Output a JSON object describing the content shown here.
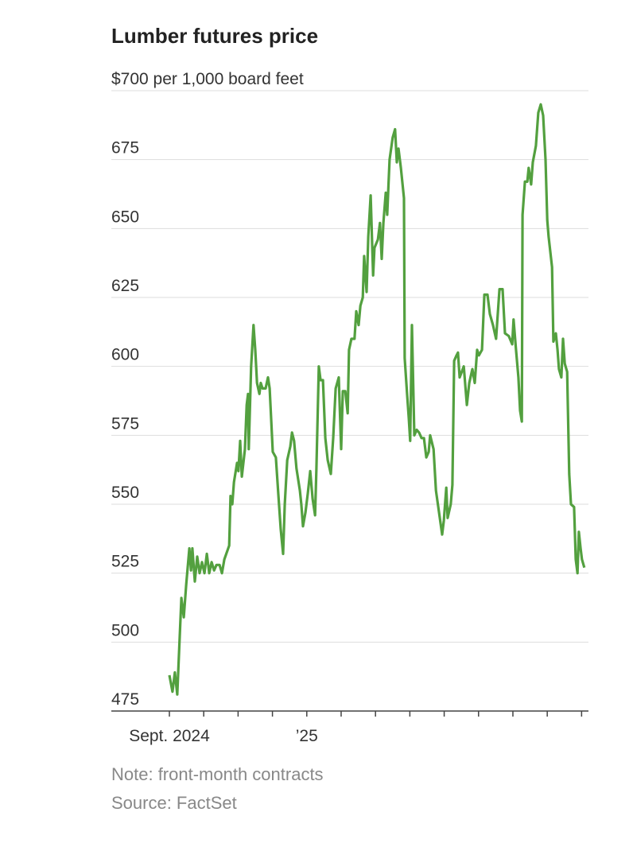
{
  "chart_data": {
    "type": "line",
    "title": "Lumber futures price",
    "note": "Note: front-month contracts",
    "source": "Source: FactSet",
    "xlim": [
      -1.69,
      12.2
    ],
    "ylim": [
      475,
      700
    ],
    "yticks": [
      475,
      500,
      525,
      550,
      575,
      600,
      625,
      650,
      675,
      {
        "value": 700,
        "label": "$700 per 1,000 board feet"
      }
    ],
    "xticks": [
      {
        "value": 0,
        "label": "Sept. 2024"
      },
      {
        "value": 1,
        "label": null
      },
      {
        "value": 2,
        "label": null
      },
      {
        "value": 3,
        "label": null
      },
      {
        "value": 4,
        "label": "’25"
      },
      {
        "value": 5,
        "label": null
      },
      {
        "value": 6,
        "label": null
      },
      {
        "value": 7,
        "label": null
      },
      {
        "value": 8,
        "label": null
      },
      {
        "value": 9,
        "label": null
      },
      {
        "value": 10,
        "label": null
      },
      {
        "value": 11,
        "label": null
      },
      {
        "value": 12,
        "label": null
      }
    ],
    "grid": true,
    "x": [
      0,
      0.09,
      0.16,
      0.23,
      0.3,
      0.35,
      0.42,
      0.49,
      0.58,
      0.63,
      0.67,
      0.74,
      0.81,
      0.88,
      0.95,
      1.02,
      1.09,
      1.16,
      1.23,
      1.3,
      1.37,
      1.46,
      1.53,
      1.6,
      1.74,
      1.78,
      1.83,
      1.88,
      1.97,
      2.01,
      2.06,
      2.11,
      2.2,
      2.25,
      2.29,
      2.31,
      2.38,
      2.45,
      2.5,
      2.55,
      2.62,
      2.66,
      2.71,
      2.8,
      2.87,
      2.92,
      3.01,
      3.1,
      3.17,
      3.24,
      3.31,
      3.36,
      3.43,
      3.52,
      3.57,
      3.63,
      3.7,
      3.8,
      3.84,
      3.89,
      3.96,
      4.03,
      4.1,
      4.17,
      4.24,
      4.28,
      4.35,
      4.4,
      4.47,
      4.54,
      4.61,
      4.7,
      4.77,
      4.84,
      4.93,
      5.0,
      5.05,
      5.12,
      5.19,
      5.23,
      5.3,
      5.39,
      5.44,
      5.51,
      5.56,
      5.63,
      5.67,
      5.74,
      5.79,
      5.86,
      5.93,
      5.97,
      6.07,
      6.13,
      6.18,
      6.23,
      6.3,
      6.34,
      6.41,
      6.5,
      6.57,
      6.62,
      6.67,
      6.74,
      6.83,
      6.85,
      6.92,
      6.97,
      7.01,
      7.06,
      7.13,
      7.2,
      7.27,
      7.34,
      7.41,
      7.48,
      7.55,
      7.59,
      7.69,
      7.76,
      7.85,
      7.94,
      7.99,
      8.06,
      8.1,
      8.19,
      8.24,
      8.29,
      8.36,
      8.4,
      8.45,
      8.57,
      8.66,
      8.73,
      8.82,
      8.89,
      8.96,
      9.01,
      9.1,
      9.17,
      9.26,
      9.33,
      9.42,
      9.51,
      9.61,
      9.7,
      9.77,
      9.88,
      9.98,
      10.02,
      10.09,
      10.16,
      10.21,
      10.26,
      10.28,
      10.35,
      10.42,
      10.46,
      10.53,
      10.58,
      10.67,
      10.74,
      10.81,
      10.88,
      10.95,
      11.0,
      11.04,
      11.14,
      11.18,
      11.25,
      11.3,
      11.34,
      11.41,
      11.46,
      11.51,
      11.58,
      11.64,
      11.69,
      11.78,
      11.83,
      11.88,
      11.92,
      11.97,
      12.01,
      12.08
    ],
    "series": [
      {
        "name": "Lumber futures",
        "color": "#53a03f",
        "values": [
          488,
          482,
          489,
          481,
          502,
          516,
          509,
          521,
          534,
          526,
          534,
          522,
          531,
          525,
          529,
          525,
          532,
          525,
          529,
          526,
          528,
          528,
          525,
          530,
          535,
          553,
          550,
          558,
          565,
          562,
          573,
          560,
          570,
          586,
          590,
          570,
          600,
          615,
          606,
          594,
          590,
          594,
          592,
          592,
          596,
          592,
          569,
          567,
          554,
          541,
          532,
          550,
          566,
          571,
          576,
          573,
          563,
          555,
          550,
          542,
          547,
          554,
          562,
          552,
          546,
          563,
          600,
          595,
          595,
          574,
          566,
          561,
          574,
          592,
          596,
          570,
          591,
          591,
          583,
          606,
          610,
          610,
          620,
          615,
          622,
          625,
          640,
          627,
          647,
          662,
          633,
          643,
          646,
          652,
          639,
          652,
          663,
          655,
          675,
          683,
          686,
          674,
          679,
          672,
          661,
          603,
          590,
          581,
          573,
          615,
          575,
          577,
          576,
          574,
          574,
          567,
          569,
          575,
          570,
          555,
          547,
          539,
          544,
          556,
          545,
          550,
          557,
          602,
          604,
          605,
          596,
          600,
          586,
          594,
          599,
          594,
          606,
          604,
          606,
          626,
          626,
          619,
          615,
          610,
          628,
          628,
          612,
          611,
          608,
          617,
          606,
          596,
          584,
          580,
          655,
          667,
          667,
          672,
          666,
          674,
          680,
          692,
          695,
          691,
          675,
          653,
          647,
          636,
          609,
          612,
          606,
          599,
          596,
          610,
          601,
          598,
          561,
          550,
          549,
          530,
          525,
          540,
          534,
          530,
          527
        ]
      }
    ]
  }
}
